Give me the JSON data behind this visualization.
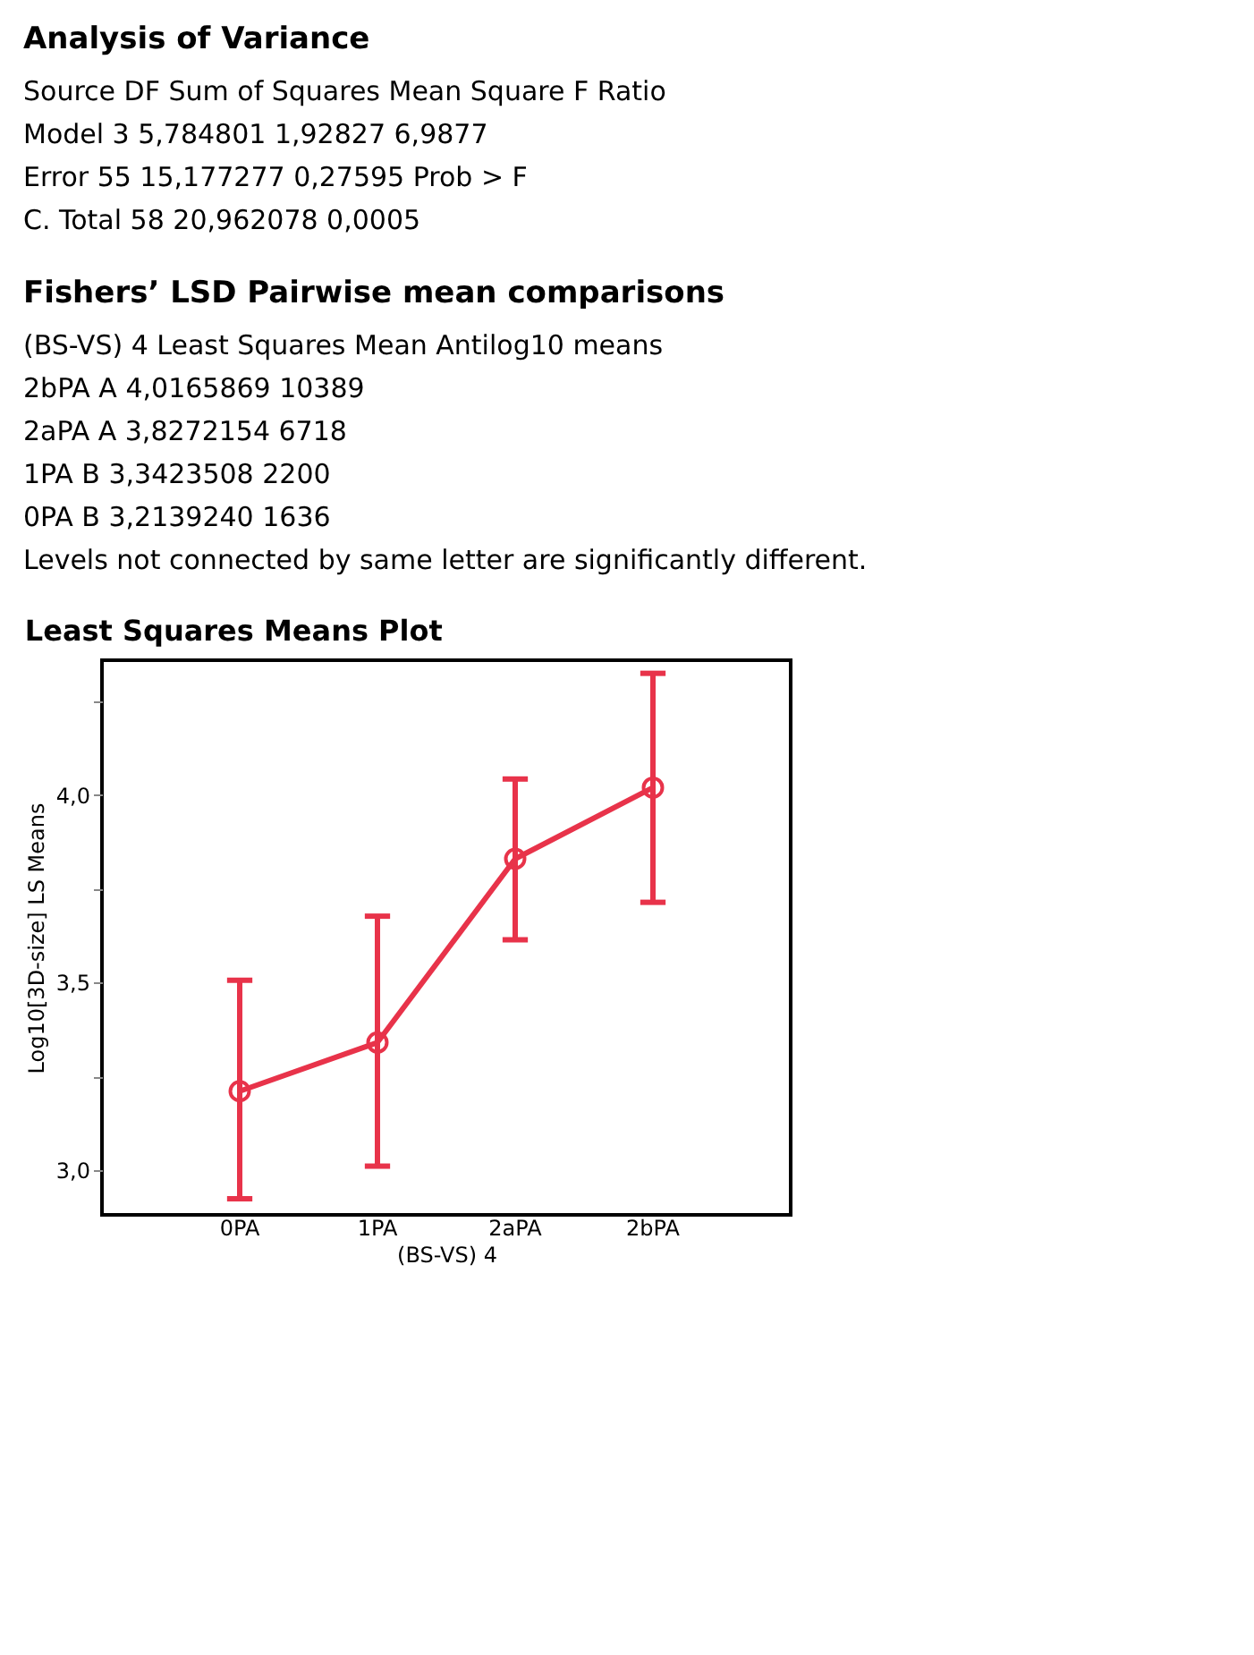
{
  "chart_data": [
    {
      "type": "other",
      "title": "Analysis of Variance",
      "annotations": [
        "Source DF Sum of Squares Mean Square F Ratio",
        "Model 3 5,784801 1,92827 6,9877",
        "Error 55 15,177277 0,27595 Prob > F",
        "C. Total 58 20,962078 0,0005"
      ]
    },
    {
      "type": "other",
      "title": "Fishers’ LSD Pairwise mean comparisons",
      "annotations": [
        "(BS-VS) 4 Least Squares Mean Antilog10 means",
        "2bPA A 4,0165869 10389",
        "2aPA A 3,8272154 6718",
        "1PA B 3,3423508 2200",
        "0PA B 3,2139240 1636",
        "Levels not connected by same letter are significantly different."
      ]
    },
    {
      "type": "line",
      "title": "Least Squares Means Plot",
      "xlabel": "(BS-VS) 4",
      "ylabel": "Log10[3D-size] LS Means",
      "categories": [
        "0PA",
        "1PA",
        "2aPA",
        "2bPA"
      ],
      "series": [
        {
          "color": "#e8334a",
          "values": [
            3.21,
            3.34,
            3.83,
            4.02
          ],
          "errors": [
            [
              2.923,
              3.506
            ],
            [
              3.01,
              3.677
            ],
            [
              3.614,
              4.043
            ],
            [
              3.714,
              4.325
            ]
          ]
        }
      ],
      "ylim": [
        2.88,
        4.36
      ],
      "yticks": [
        {
          "value": 3,
          "label": "3,0"
        },
        {
          "value": 3.25,
          "label": null
        },
        {
          "value": 3.5,
          "label": "3,5"
        },
        {
          "value": 3.75,
          "label": null
        },
        {
          "value": 4,
          "label": "4,0"
        },
        {
          "value": 4.25,
          "label": null
        }
      ],
      "grid": false,
      "marker": "circle",
      "line_style": "solid"
    }
  ]
}
